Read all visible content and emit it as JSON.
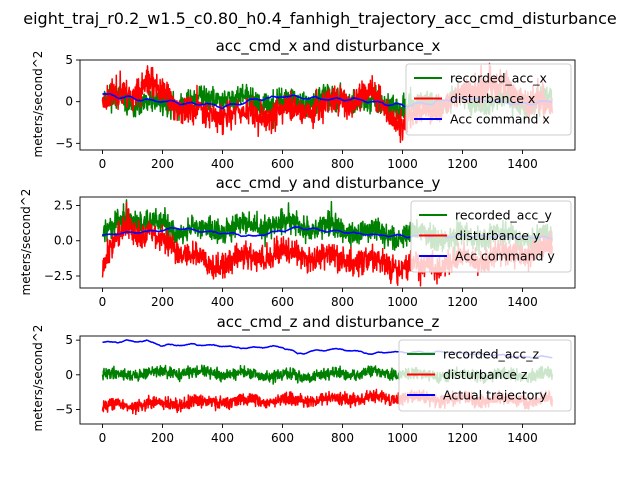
{
  "figure": {
    "suptitle": "eight_traj_r0.2_w1.5_c0.80_h0.4_fanhigh_trajectory_acc_cmd_disturbance"
  },
  "chart_data": [
    {
      "type": "line",
      "title": "acc_cmd_x and disturbance_x",
      "xlabel": "",
      "ylabel": "meters/second^2",
      "xlim": [
        -75,
        1575
      ],
      "ylim": [
        -5.8,
        5.0
      ],
      "xticks": [
        0,
        200,
        400,
        600,
        800,
        1000,
        1200,
        1400
      ],
      "yticks": [
        -5,
        0,
        5
      ],
      "grid": false,
      "legend_position": "upper right",
      "n_points": 1500,
      "series": [
        {
          "name": "recorded_acc_x",
          "color": "#008000",
          "kind": "noisy",
          "base": 0.0,
          "amp": 1.6,
          "spikes": 1,
          "seed": 11,
          "samples": [
            [
              0,
              0.5
            ],
            [
              200,
              -0.8
            ],
            [
              400,
              1.0
            ],
            [
              600,
              -0.6
            ],
            [
              800,
              0.9
            ],
            [
              1000,
              -1.2
            ],
            [
              1200,
              0.6
            ],
            [
              1400,
              -0.4
            ],
            [
              1500,
              0.3
            ]
          ]
        },
        {
          "name": "disturbance x",
          "color": "#ff0000",
          "kind": "noisy",
          "base": -0.2,
          "amp": 1.9,
          "spikes": 1,
          "seed": 23,
          "samples": [
            [
              0,
              0.0
            ],
            [
              150,
              4.3
            ],
            [
              300,
              -2.4
            ],
            [
              540,
              -3.0
            ],
            [
              900,
              1.6
            ],
            [
              1000,
              -4.6
            ],
            [
              1290,
              4.6
            ],
            [
              1500,
              -1.4
            ]
          ]
        },
        {
          "name": "Acc command x",
          "color": "#0000ff",
          "kind": "smooth",
          "base": 0.0,
          "amp": 0.35,
          "seed": 5,
          "samples": [
            [
              0,
              0.9
            ],
            [
              200,
              0.1
            ],
            [
              400,
              -0.6
            ],
            [
              600,
              0.7
            ],
            [
              800,
              0.3
            ],
            [
              1000,
              -0.5
            ],
            [
              1200,
              0.4
            ],
            [
              1400,
              -0.3
            ],
            [
              1500,
              0.0
            ]
          ]
        }
      ]
    },
    {
      "type": "line",
      "title": "acc_cmd_y and disturbance_y",
      "xlabel": "",
      "ylabel": "meters/second^2",
      "xlim": [
        -75,
        1575
      ],
      "ylim": [
        -3.35,
        3.1
      ],
      "xticks": [
        0,
        200,
        400,
        600,
        800,
        1000,
        1200,
        1400
      ],
      "yticks": [
        -2.5,
        0.0,
        2.5
      ],
      "ytick_labels": [
        "−2.5",
        "0.0",
        "2.5"
      ],
      "grid": false,
      "legend_position": "upper right",
      "n_points": 1500,
      "series": [
        {
          "name": "recorded_acc_y",
          "color": "#008000",
          "kind": "noisy",
          "base": 0.4,
          "amp": 0.9,
          "spikes": 1,
          "seed": 31,
          "samples": [
            [
              0,
              0.3
            ],
            [
              80,
              2.9
            ],
            [
              300,
              1.0
            ],
            [
              600,
              2.0
            ],
            [
              1000,
              0.3
            ],
            [
              1500,
              0.2
            ]
          ]
        },
        {
          "name": "disturbance y",
          "color": "#ff0000",
          "kind": "noisy",
          "base": -0.6,
          "amp": 1.0,
          "spikes": 1,
          "seed": 37,
          "samples": [
            [
              0,
              -2.6
            ],
            [
              80,
              2.7
            ],
            [
              370,
              -2.7
            ],
            [
              600,
              -1.0
            ],
            [
              1060,
              -3.2
            ],
            [
              1500,
              -0.4
            ]
          ]
        },
        {
          "name": "Acc command y",
          "color": "#0000ff",
          "kind": "smooth",
          "base": 0.45,
          "amp": 0.15,
          "seed": 9,
          "samples": [
            [
              0,
              0.4
            ],
            [
              250,
              0.9
            ],
            [
              500,
              0.3
            ],
            [
              650,
              0.9
            ],
            [
              900,
              0.4
            ],
            [
              1200,
              0.3
            ],
            [
              1500,
              0.2
            ]
          ]
        }
      ]
    },
    {
      "type": "line",
      "title": "acc_cmd_z and disturbance_z",
      "xlabel": "",
      "ylabel": "meters/second^2",
      "xlim": [
        -75,
        1575
      ],
      "ylim": [
        -7.1,
        5.6
      ],
      "xticks": [
        0,
        200,
        400,
        600,
        800,
        1000,
        1200,
        1400
      ],
      "yticks": [
        -5,
        0,
        5
      ],
      "grid": false,
      "legend_position": "upper right",
      "n_points": 1500,
      "series": [
        {
          "name": "recorded_acc_z",
          "color": "#008000",
          "kind": "noisy",
          "base": 0.0,
          "amp": 0.9,
          "spikes": 0,
          "seed": 41,
          "samples": [
            [
              0,
              0.0
            ],
            [
              300,
              0.8
            ],
            [
              600,
              -0.4
            ],
            [
              900,
              0.5
            ],
            [
              1200,
              -0.2
            ],
            [
              1500,
              0.1
            ]
          ]
        },
        {
          "name": "disturbance z",
          "color": "#ff0000",
          "kind": "noisy",
          "base": -3.8,
          "amp": 1.0,
          "spikes": 0,
          "seed": 43,
          "samples": [
            [
              0,
              -5.2
            ],
            [
              200,
              -4.6
            ],
            [
              400,
              -3.8
            ],
            [
              600,
              -3.6
            ],
            [
              800,
              -3.2
            ],
            [
              1000,
              -2.8
            ],
            [
              1200,
              -3.4
            ],
            [
              1500,
              -3.5
            ]
          ]
        },
        {
          "name": "Actual trajectory",
          "color": "#0000ff",
          "kind": "smooth",
          "base": 0.0,
          "amp": 0.25,
          "seed": 13,
          "samples": [
            [
              0,
              4.7
            ],
            [
              150,
              4.9
            ],
            [
              200,
              4.2
            ],
            [
              300,
              4.4
            ],
            [
              500,
              3.9
            ],
            [
              600,
              4.1
            ],
            [
              650,
              3.1
            ],
            [
              800,
              3.7
            ],
            [
              900,
              3.0
            ],
            [
              1000,
              3.3
            ],
            [
              1200,
              3.2
            ],
            [
              1400,
              2.6
            ],
            [
              1500,
              2.4
            ]
          ]
        }
      ]
    }
  ]
}
